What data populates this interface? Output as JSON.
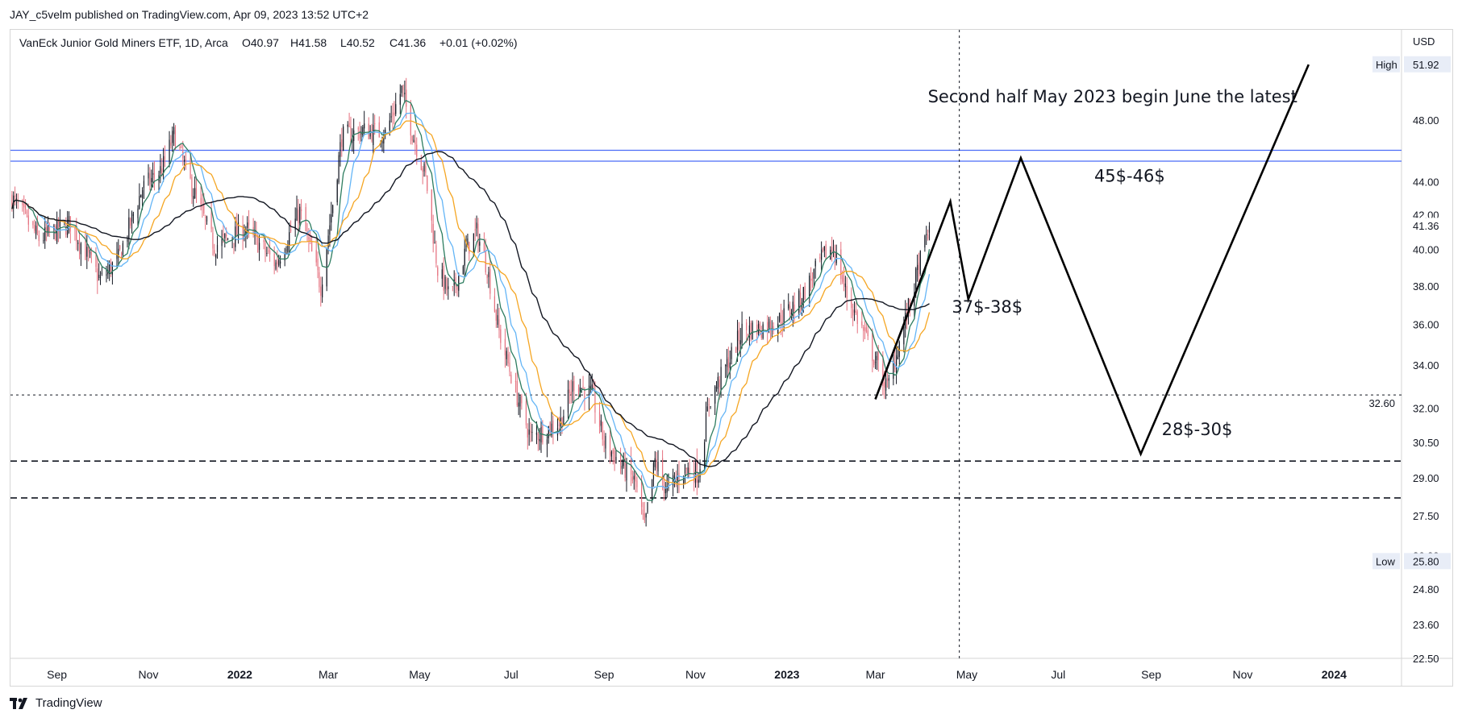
{
  "header": {
    "published_by": "JAY_c5velm published on TradingView.com, Apr 09, 2023 13:52 UTC+2"
  },
  "footer": {
    "brand": "TradingView"
  },
  "colors": {
    "candle_up": "#131722",
    "candle_down": "#e5717f",
    "ma_fast": "#2e7d60",
    "ma_mid": "#64b5f6",
    "ma_slow": "#f5a623",
    "ma_long": "#131722",
    "hline_blue": "#4a6cf7",
    "projection": "#000000",
    "badge_bg": "#e8edf7"
  },
  "chart_data": {
    "type": "line",
    "symbol_line": {
      "title": "VanEck Junior Gold Miners ETF, 1D, Arca",
      "open": "O40.97",
      "high": "H41.58",
      "low": "L40.52",
      "close": "C41.36",
      "change": "+0.01 (+0.02%)"
    },
    "currency": "USD",
    "y_scale": "log",
    "ylim": [
      22.5,
      54.5
    ],
    "y_ticks": [
      {
        "value": 22.5,
        "label": "22.50"
      },
      {
        "value": 23.6,
        "label": "23.60"
      },
      {
        "value": 24.8,
        "label": "24.80"
      },
      {
        "value": 26.0,
        "label": "26.00"
      },
      {
        "value": 27.5,
        "label": "27.50"
      },
      {
        "value": 29.0,
        "label": "29.00"
      },
      {
        "value": 30.5,
        "label": "30.50"
      },
      {
        "value": 32.0,
        "label": "32.00"
      },
      {
        "value": 34.0,
        "label": "34.00"
      },
      {
        "value": 36.0,
        "label": "36.00"
      },
      {
        "value": 38.0,
        "label": "38.00"
      },
      {
        "value": 40.0,
        "label": "40.00"
      },
      {
        "value": 42.0,
        "label": "42.00"
      },
      {
        "value": 44.0,
        "label": "44.00"
      },
      {
        "value": 48.0,
        "label": "48.00"
      }
    ],
    "x_range": [
      "2021-08-01",
      "2024-02-15"
    ],
    "x_ticks": [
      {
        "date": "2021-09-01",
        "label": "Sep",
        "bold": false
      },
      {
        "date": "2021-11-01",
        "label": "Nov",
        "bold": false
      },
      {
        "date": "2022-01-01",
        "label": "2022",
        "bold": true
      },
      {
        "date": "2022-03-01",
        "label": "Mar",
        "bold": false
      },
      {
        "date": "2022-05-01",
        "label": "May",
        "bold": false
      },
      {
        "date": "2022-07-01",
        "label": "Jul",
        "bold": false
      },
      {
        "date": "2022-09-01",
        "label": "Sep",
        "bold": false
      },
      {
        "date": "2022-11-01",
        "label": "Nov",
        "bold": false
      },
      {
        "date": "2023-01-01",
        "label": "2023",
        "bold": true
      },
      {
        "date": "2023-03-01",
        "label": "Mar",
        "bold": false
      },
      {
        "date": "2023-05-01",
        "label": "May",
        "bold": false
      },
      {
        "date": "2023-07-01",
        "label": "Jul",
        "bold": false
      },
      {
        "date": "2023-09-01",
        "label": "Sep",
        "bold": false
      },
      {
        "date": "2023-11-01",
        "label": "Nov",
        "bold": false
      },
      {
        "date": "2024-01-01",
        "label": "2024",
        "bold": true
      }
    ],
    "price_badges": [
      {
        "label": "High",
        "value": 51.92,
        "text": "51.92"
      },
      {
        "label": "",
        "value": 41.36,
        "text": "41.36"
      },
      {
        "label": "Low",
        "value": 25.8,
        "text": "25.80"
      }
    ],
    "horizontal_lines": [
      {
        "value": 46.0,
        "style": "solid",
        "color_key": "hline_blue"
      },
      {
        "value": 45.3,
        "style": "solid",
        "color_key": "hline_blue"
      },
      {
        "value": 32.6,
        "style": "dotted",
        "label": "32.60"
      },
      {
        "value": 29.7,
        "style": "dashed"
      },
      {
        "value": 28.2,
        "style": "dashed"
      }
    ],
    "vertical_line_date": "2023-04-26",
    "annotations": [
      {
        "text": "Second half May 2023 begin June the latest",
        "date": "2023-04-05",
        "value": 49.2,
        "size": 21
      },
      {
        "text": "45$-46$",
        "date": "2023-07-25",
        "value": 44.0,
        "size": 21
      },
      {
        "text": "37$-38$",
        "date": "2023-04-21",
        "value": 36.6,
        "size": 21
      },
      {
        "text": "28$-30$",
        "date": "2023-09-08",
        "value": 30.8,
        "size": 21
      }
    ],
    "projection_path": [
      {
        "date": "2023-03-01",
        "value": 32.4
      },
      {
        "date": "2023-04-20",
        "value": 42.8
      },
      {
        "date": "2023-05-02",
        "value": 37.3
      },
      {
        "date": "2023-06-06",
        "value": 45.5
      },
      {
        "date": "2023-08-25",
        "value": 30.0
      },
      {
        "date": "2023-12-15",
        "value": 51.9
      }
    ],
    "price_path": [
      {
        "date": "2021-08-02",
        "value": 43.0
      },
      {
        "date": "2021-08-20",
        "value": 40.6
      },
      {
        "date": "2021-09-10",
        "value": 41.5
      },
      {
        "date": "2021-09-30",
        "value": 38.3
      },
      {
        "date": "2021-10-12",
        "value": 39.5
      },
      {
        "date": "2021-10-28",
        "value": 43.6
      },
      {
        "date": "2021-11-10",
        "value": 44.8
      },
      {
        "date": "2021-11-18",
        "value": 47.0
      },
      {
        "date": "2021-11-30",
        "value": 43.7
      },
      {
        "date": "2021-12-15",
        "value": 40.2
      },
      {
        "date": "2022-01-05",
        "value": 41.2
      },
      {
        "date": "2022-01-25",
        "value": 39.2
      },
      {
        "date": "2022-02-10",
        "value": 42.2
      },
      {
        "date": "2022-02-24",
        "value": 38.0
      },
      {
        "date": "2022-03-04",
        "value": 42.7
      },
      {
        "date": "2022-03-10",
        "value": 46.9
      },
      {
        "date": "2022-03-24",
        "value": 47.3
      },
      {
        "date": "2022-04-08",
        "value": 47.1
      },
      {
        "date": "2022-04-19",
        "value": 50.1
      },
      {
        "date": "2022-04-26",
        "value": 47.2
      },
      {
        "date": "2022-05-05",
        "value": 44.3
      },
      {
        "date": "2022-05-13",
        "value": 38.9
      },
      {
        "date": "2022-05-22",
        "value": 37.3
      },
      {
        "date": "2022-06-01",
        "value": 40.0
      },
      {
        "date": "2022-06-08",
        "value": 41.0
      },
      {
        "date": "2022-06-15",
        "value": 39.0
      },
      {
        "date": "2022-06-23",
        "value": 35.6
      },
      {
        "date": "2022-07-06",
        "value": 32.3
      },
      {
        "date": "2022-07-14",
        "value": 30.7
      },
      {
        "date": "2022-07-26",
        "value": 31.1
      },
      {
        "date": "2022-08-03",
        "value": 31.4
      },
      {
        "date": "2022-08-12",
        "value": 33.2
      },
      {
        "date": "2022-08-24",
        "value": 32.6
      },
      {
        "date": "2022-09-01",
        "value": 30.5
      },
      {
        "date": "2022-09-12",
        "value": 29.6
      },
      {
        "date": "2022-09-22",
        "value": 28.8
      },
      {
        "date": "2022-09-28",
        "value": 27.0
      },
      {
        "date": "2022-10-05",
        "value": 29.7
      },
      {
        "date": "2022-10-13",
        "value": 28.5
      },
      {
        "date": "2022-10-25",
        "value": 29.4
      },
      {
        "date": "2022-11-03",
        "value": 29.2
      },
      {
        "date": "2022-11-10",
        "value": 32.3
      },
      {
        "date": "2022-11-24",
        "value": 34.3
      },
      {
        "date": "2022-12-02",
        "value": 35.7
      },
      {
        "date": "2022-12-14",
        "value": 35.8
      },
      {
        "date": "2022-12-28",
        "value": 36.3
      },
      {
        "date": "2023-01-10",
        "value": 37.3
      },
      {
        "date": "2023-01-25",
        "value": 39.6
      },
      {
        "date": "2023-02-01",
        "value": 40.1
      },
      {
        "date": "2023-02-10",
        "value": 37.5
      },
      {
        "date": "2023-02-20",
        "value": 35.8
      },
      {
        "date": "2023-03-01",
        "value": 34.2
      },
      {
        "date": "2023-03-09",
        "value": 32.9
      },
      {
        "date": "2023-03-16",
        "value": 34.8
      },
      {
        "date": "2023-03-24",
        "value": 37.1
      },
      {
        "date": "2023-03-31",
        "value": 39.4
      },
      {
        "date": "2023-04-06",
        "value": 41.36
      }
    ]
  }
}
